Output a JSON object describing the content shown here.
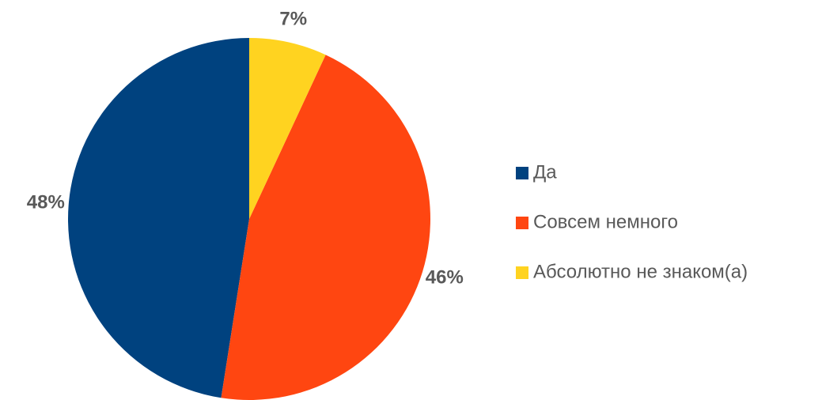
{
  "chart_data": {
    "type": "pie",
    "categories": [
      "Да",
      "Совсем немного",
      "Абсолютно не знаком(а)"
    ],
    "values": [
      48,
      46,
      7
    ],
    "value_labels": [
      "48%",
      "46%",
      "7%"
    ],
    "colors": [
      "#00427f",
      "#ff4611",
      "#ffd320"
    ],
    "legend": "right"
  }
}
